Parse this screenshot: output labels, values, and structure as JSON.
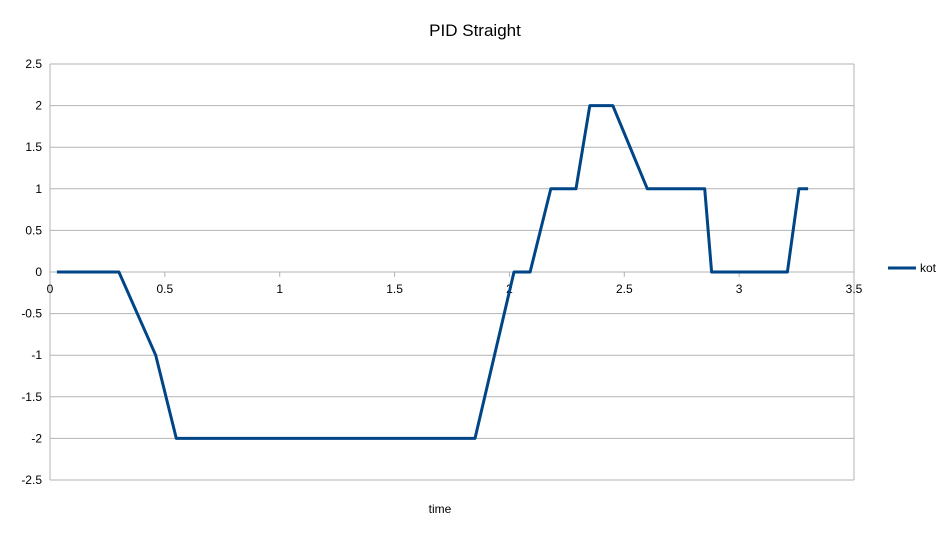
{
  "chart_data": {
    "type": "line",
    "title": "PID Straight",
    "xlabel": "time",
    "ylabel": "",
    "xlim": [
      0,
      3.5
    ],
    "ylim": [
      -2.5,
      2.5
    ],
    "x_ticks": [
      0,
      0.5,
      1,
      1.5,
      2,
      2.5,
      3,
      3.5
    ],
    "y_ticks": [
      2.5,
      2,
      1.5,
      1,
      0.5,
      0,
      -0.5,
      -1,
      -1.5,
      -2,
      -2.5
    ],
    "grid": true,
    "legend_position": "right",
    "series": [
      {
        "name": "kot",
        "color": "#004586",
        "points": [
          [
            0.03,
            0
          ],
          [
            0.3,
            0
          ],
          [
            0.46,
            -1
          ],
          [
            0.55,
            -2
          ],
          [
            1.85,
            -2
          ],
          [
            2.02,
            0
          ],
          [
            2.09,
            0
          ],
          [
            2.18,
            1
          ],
          [
            2.29,
            1
          ],
          [
            2.35,
            2
          ],
          [
            2.45,
            2
          ],
          [
            2.6,
            1
          ],
          [
            2.85,
            1
          ],
          [
            2.88,
            0
          ],
          [
            3.21,
            0
          ],
          [
            3.26,
            1
          ],
          [
            3.3,
            1
          ]
        ]
      }
    ]
  }
}
